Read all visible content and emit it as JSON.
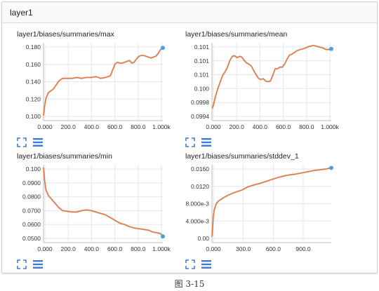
{
  "panel": {
    "title": "layer1"
  },
  "figure_caption": "图 3-15",
  "colors": {
    "line": "#e6743a",
    "smooth_shadow": "#b7b7b7",
    "point": "#4aa3df",
    "grid": "#e6e6e6",
    "icon": "#3b7bd4"
  },
  "icons": {
    "fit": "fit-domain-icon",
    "menu": "data-menu-icon"
  },
  "charts": [
    {
      "title": "layer1/biases/summaries/max",
      "x_ticks": [
        "0.000",
        "200.0",
        "400.0",
        "600.0",
        "800.0",
        "1.000k"
      ],
      "y_ticks": [
        "0.100",
        "0.120",
        "0.140",
        "0.160",
        "0.180"
      ]
    },
    {
      "title": "layer1/biases/summaries/mean",
      "x_ticks": [
        "0.000",
        "200.0",
        "400.0",
        "600.0",
        "800.0",
        "1.000k"
      ],
      "y_ticks": [
        "0.0994",
        "0.0998",
        "0.100",
        "0.101",
        "0.101",
        "0.101"
      ]
    },
    {
      "title": "layer1/biases/summaries/min",
      "x_ticks": [
        "0.000",
        "200.0",
        "400.0",
        "600.0",
        "800.0",
        "1.000k"
      ],
      "y_ticks": [
        "0.0500",
        "0.0600",
        "0.0700",
        "0.0800",
        "0.0900",
        "0.100"
      ]
    },
    {
      "title": "layer1/biases/summaries/stddev_1",
      "x_ticks": [
        "0.000",
        "300.0",
        "600.0",
        "900.0"
      ],
      "y_ticks": [
        "0.00",
        "4.000e-3",
        "8.000e-3",
        "0.0120",
        "0.0160"
      ]
    }
  ],
  "chart_data": [
    {
      "type": "line",
      "title": "layer1/biases/summaries/max",
      "xlim": [
        0,
        1000
      ],
      "ylim": [
        0.094,
        0.186
      ],
      "series": [
        {
          "x": [
            0,
            10,
            20,
            40,
            60,
            80,
            100,
            130,
            160,
            200,
            240,
            280,
            320,
            360,
            400,
            440,
            480,
            520,
            560,
            580,
            600,
            620,
            640,
            660,
            680,
            700,
            720,
            740,
            760,
            780,
            800,
            820,
            840,
            860,
            880,
            900,
            920,
            940,
            960,
            980,
            1000
          ],
          "values": [
            0.1,
            0.112,
            0.12,
            0.127,
            0.129,
            0.131,
            0.135,
            0.141,
            0.144,
            0.144,
            0.144,
            0.145,
            0.144,
            0.145,
            0.145,
            0.146,
            0.144,
            0.145,
            0.147,
            0.154,
            0.161,
            0.163,
            0.162,
            0.162,
            0.163,
            0.164,
            0.165,
            0.162,
            0.163,
            0.167,
            0.17,
            0.171,
            0.171,
            0.17,
            0.169,
            0.168,
            0.169,
            0.17,
            0.173,
            0.178,
            0.18
          ]
        }
      ]
    },
    {
      "type": "line",
      "title": "layer1/biases/summaries/mean",
      "xlim": [
        0,
        1000
      ],
      "ylim": [
        0.0992,
        0.1016
      ],
      "series": [
        {
          "x": [
            0,
            10,
            30,
            50,
            70,
            90,
            110,
            130,
            150,
            170,
            190,
            210,
            230,
            250,
            270,
            290,
            310,
            330,
            350,
            370,
            390,
            410,
            430,
            450,
            470,
            490,
            510,
            530,
            550,
            570,
            590,
            610,
            630,
            650,
            670,
            690,
            710,
            730,
            750,
            770,
            790,
            810,
            830,
            850,
            870,
            890,
            910,
            930,
            950,
            970,
            990,
            1000
          ],
          "values": [
            0.09957,
            0.09965,
            0.09995,
            0.1002,
            0.1004,
            0.1006,
            0.1007,
            0.10085,
            0.10105,
            0.10118,
            0.1012,
            0.10114,
            0.10118,
            0.10116,
            0.10106,
            0.10098,
            0.10094,
            0.10088,
            0.10074,
            0.10062,
            0.1005,
            0.10047,
            0.10049,
            0.10042,
            0.1004,
            0.10042,
            0.1006,
            0.1008,
            0.1008,
            0.10085,
            0.10085,
            0.10095,
            0.1011,
            0.10122,
            0.10125,
            0.1013,
            0.10135,
            0.10138,
            0.1014,
            0.10142,
            0.10145,
            0.10148,
            0.1015,
            0.10152,
            0.1015,
            0.10148,
            0.10146,
            0.10144,
            0.1014,
            0.10139,
            0.1014,
            0.10141
          ]
        }
      ]
    },
    {
      "type": "line",
      "title": "layer1/biases/summaries/min",
      "xlim": [
        0,
        1000
      ],
      "ylim": [
        0.046,
        0.102
      ],
      "series": [
        {
          "x": [
            0,
            10,
            20,
            40,
            60,
            80,
            100,
            130,
            160,
            200,
            240,
            280,
            320,
            360,
            400,
            440,
            480,
            520,
            560,
            600,
            640,
            680,
            720,
            760,
            800,
            840,
            880,
            920,
            960,
            980,
            1000
          ],
          "values": [
            0.1,
            0.09,
            0.084,
            0.08,
            0.078,
            0.076,
            0.074,
            0.071,
            0.069,
            0.0685,
            0.068,
            0.068,
            0.069,
            0.0695,
            0.069,
            0.068,
            0.067,
            0.066,
            0.064,
            0.062,
            0.06,
            0.059,
            0.0575,
            0.0565,
            0.056,
            0.0555,
            0.055,
            0.0535,
            0.053,
            0.0525,
            0.0505
          ]
        }
      ]
    },
    {
      "type": "line",
      "title": "layer1/biases/summaries/stddev_1",
      "xlim": [
        0,
        1000
      ],
      "ylim": [
        -0.0015,
        0.0185
      ],
      "series": [
        {
          "x": [
            0,
            5,
            10,
            15,
            20,
            30,
            40,
            60,
            80,
            100,
            130,
            160,
            200,
            250,
            300,
            350,
            400,
            450,
            500,
            550,
            600,
            650,
            700,
            750,
            800,
            850,
            900,
            950,
            1000
          ],
          "values": [
            0.0,
            0.0025,
            0.0045,
            0.006,
            0.007,
            0.008,
            0.0087,
            0.0093,
            0.0097,
            0.0101,
            0.0106,
            0.011,
            0.0115,
            0.012,
            0.0128,
            0.0133,
            0.0137,
            0.0142,
            0.0147,
            0.0152,
            0.0156,
            0.0159,
            0.0161,
            0.0164,
            0.0167,
            0.017,
            0.0172,
            0.0174,
            0.0177
          ]
        }
      ]
    }
  ]
}
